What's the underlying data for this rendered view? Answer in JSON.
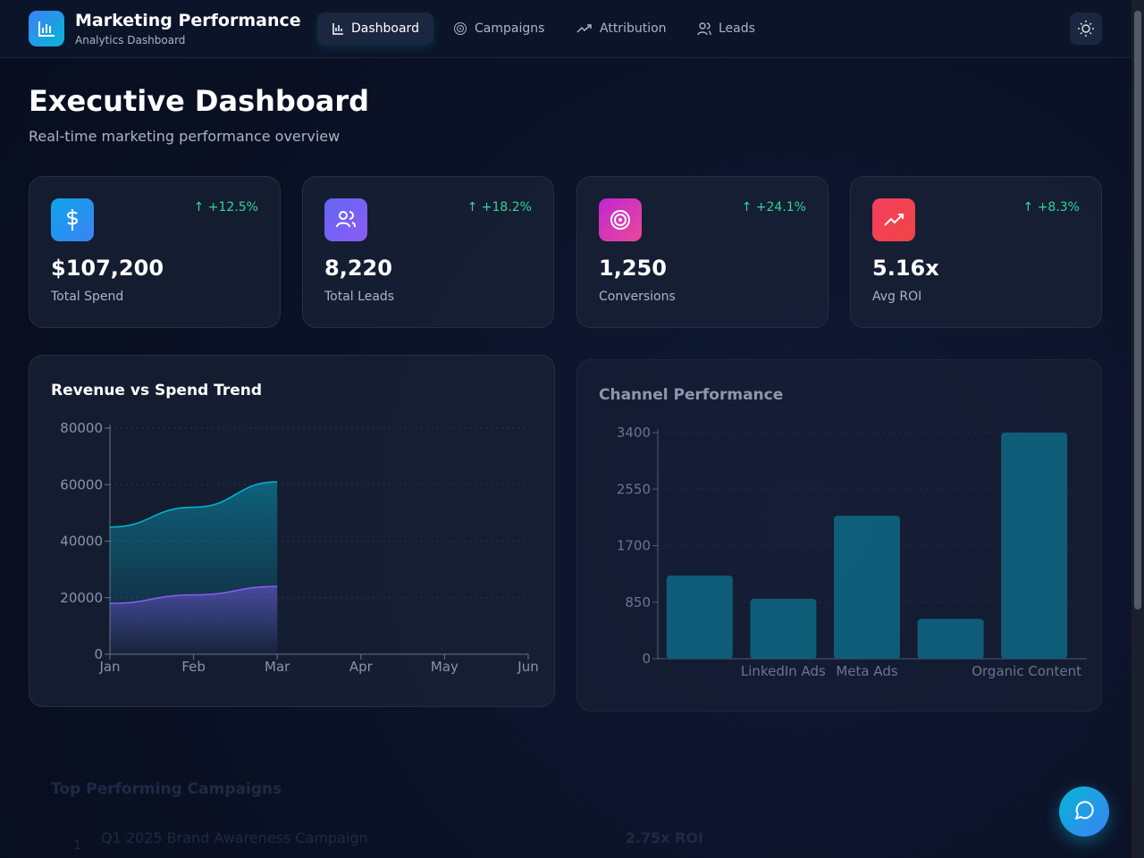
{
  "header": {
    "title": "Marketing Performance",
    "subtitle": "Analytics Dashboard",
    "nav": [
      "Dashboard",
      "Campaigns",
      "Attribution",
      "Leads"
    ]
  },
  "page": {
    "title": "Executive Dashboard",
    "subtitle": "Real-time marketing performance overview"
  },
  "kpis": [
    {
      "value": "$107,200",
      "label": "Total Spend",
      "change": "+12.5%"
    },
    {
      "value": "8,220",
      "label": "Total Leads",
      "change": "+18.2%"
    },
    {
      "value": "1,250",
      "label": "Conversions",
      "change": "+24.1%"
    },
    {
      "value": "5.16x",
      "label": "Avg ROI",
      "change": "+8.3%"
    }
  ],
  "chart_data": [
    {
      "type": "area",
      "title": "Revenue vs Spend Trend",
      "categories": [
        "Jan",
        "Feb",
        "Mar",
        "Apr",
        "May",
        "Jun"
      ],
      "series": [
        {
          "color": "#06b6d4",
          "values": [
            45000,
            52000,
            61000,
            null,
            null,
            null
          ]
        },
        {
          "color": "#8b5cf6",
          "values": [
            18000,
            21000,
            24000,
            null,
            null,
            null
          ]
        }
      ],
      "ylim": [
        0,
        80000
      ],
      "yticks": [
        0,
        20000,
        40000,
        60000,
        80000
      ]
    },
    {
      "type": "bar",
      "title": "Channel Performance",
      "categories": [
        null,
        "LinkedIn Ads",
        "Meta Ads",
        null,
        "Organic Content"
      ],
      "values": [
        1250,
        900,
        2150,
        600,
        3400
      ],
      "color": "#0e7490",
      "ylim": [
        0,
        3400
      ],
      "yticks": [
        0,
        850,
        1700,
        2550,
        3400
      ]
    }
  ],
  "campaigns": {
    "title": "Top Performing Campaigns",
    "rows": [
      {
        "rank": "1",
        "name": "Q1 2025 Brand Awareness Campaign",
        "roi": "2.75x ROI"
      }
    ]
  }
}
